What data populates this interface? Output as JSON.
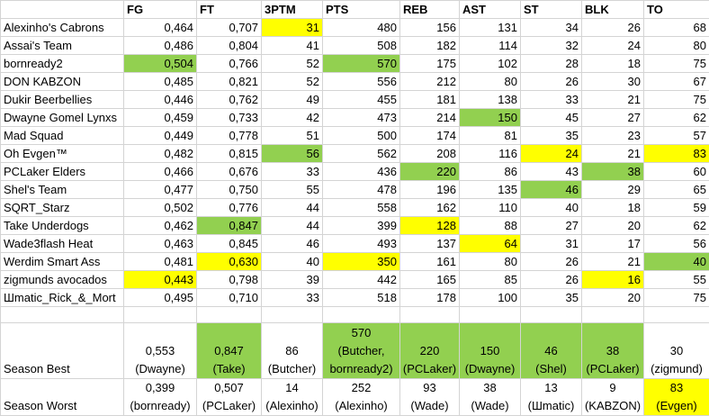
{
  "headers": [
    "FG",
    "FT",
    "3PTM",
    "PTS",
    "REB",
    "AST",
    "ST",
    "BLK",
    "TO"
  ],
  "rows": [
    [
      "Alexinho's Cabrons",
      "0,464",
      "0,707",
      "31",
      "480",
      "156",
      "131",
      "34",
      "26",
      "68"
    ],
    [
      "Assai's Team",
      "0,486",
      "0,804",
      "41",
      "508",
      "182",
      "114",
      "32",
      "24",
      "80"
    ],
    [
      "bornready2",
      "0,504",
      "0,766",
      "52",
      "570",
      "175",
      "102",
      "28",
      "18",
      "75"
    ],
    [
      "DON KABZON",
      "0,485",
      "0,821",
      "52",
      "556",
      "212",
      "80",
      "26",
      "30",
      "67"
    ],
    [
      "Dukir Beerbellies",
      "0,446",
      "0,762",
      "49",
      "455",
      "181",
      "138",
      "33",
      "21",
      "75"
    ],
    [
      "Dwayne Gomel Lynxs",
      "0,459",
      "0,733",
      "42",
      "473",
      "214",
      "150",
      "45",
      "27",
      "62"
    ],
    [
      "Mad Squad",
      "0,449",
      "0,778",
      "51",
      "500",
      "174",
      "81",
      "35",
      "23",
      "57"
    ],
    [
      "Oh Evgen™",
      "0,482",
      "0,815",
      "56",
      "562",
      "208",
      "116",
      "24",
      "21",
      "83"
    ],
    [
      "PCLaker Elders",
      "0,466",
      "0,676",
      "33",
      "436",
      "220",
      "86",
      "43",
      "38",
      "60"
    ],
    [
      "Shel's Team",
      "0,477",
      "0,750",
      "55",
      "478",
      "196",
      "135",
      "46",
      "29",
      "65"
    ],
    [
      "SQRT_Starz",
      "0,502",
      "0,776",
      "44",
      "558",
      "162",
      "110",
      "40",
      "18",
      "59"
    ],
    [
      "Take Underdogs",
      "0,462",
      "0,847",
      "44",
      "399",
      "128",
      "88",
      "27",
      "20",
      "62"
    ],
    [
      "Wade3flash Heat",
      "0,463",
      "0,845",
      "46",
      "493",
      "137",
      "64",
      "31",
      "17",
      "56"
    ],
    [
      "Werdim Smart Ass",
      "0,481",
      "0,630",
      "40",
      "350",
      "161",
      "80",
      "26",
      "21",
      "40"
    ],
    [
      "zigmunds avocados",
      "0,443",
      "0,798",
      "39",
      "442",
      "165",
      "85",
      "26",
      "16",
      "55"
    ],
    [
      "Шmatic_Rick_&_Mort",
      "0,495",
      "0,710",
      "33",
      "518",
      "178",
      "100",
      "35",
      "20",
      "75"
    ]
  ],
  "season_best": {
    "label": "Season Best",
    "cells": [
      [
        "0,553",
        "(Dwayne)"
      ],
      [
        "0,847",
        "(Take)"
      ],
      [
        "86",
        "(Butcher)"
      ],
      [
        "570",
        "(Butcher,",
        "bornready2)"
      ],
      [
        "220",
        "(PCLaker)"
      ],
      [
        "150",
        "(Dwayne)"
      ],
      [
        "46",
        "(Shel)"
      ],
      [
        "38",
        "(PCLaker)"
      ],
      [
        "30",
        "(zigmund)"
      ]
    ]
  },
  "season_worst": {
    "label": "Season Worst",
    "cells": [
      [
        "0,399",
        "(bornready)"
      ],
      [
        "0,507",
        "(PCLaker)"
      ],
      [
        "14",
        "(Alexinho)"
      ],
      [
        "252",
        "(Alexinho)"
      ],
      [
        "93",
        "(Wade)"
      ],
      [
        "38",
        "(Wade)"
      ],
      [
        "13",
        "(Шmatic)"
      ],
      [
        "9",
        "(KABZON)"
      ],
      [
        "83",
        "(Evgen)"
      ]
    ]
  }
}
